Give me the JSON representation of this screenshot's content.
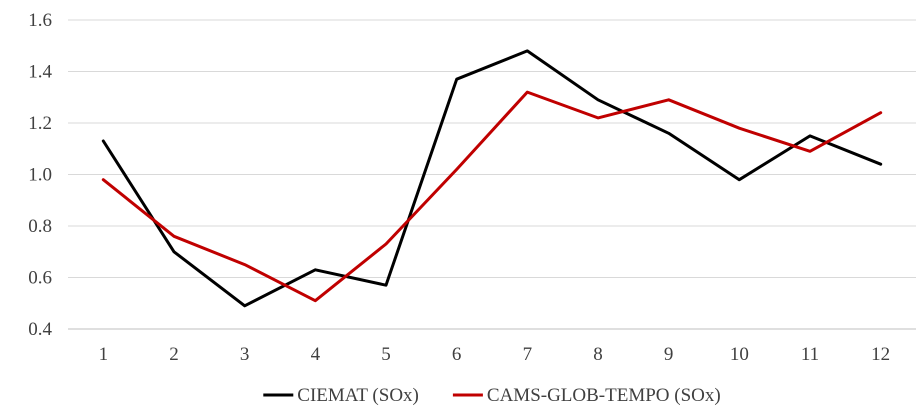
{
  "chart_data": {
    "type": "line",
    "title": "",
    "xlabel": "",
    "ylabel": "",
    "categories": [
      "1",
      "2",
      "3",
      "4",
      "5",
      "6",
      "7",
      "8",
      "9",
      "10",
      "11",
      "12"
    ],
    "ylim": [
      0.4,
      1.6
    ],
    "yticks": [
      "0.4",
      "0.6",
      "0.8",
      "1.0",
      "1.2",
      "1.4",
      "1.6"
    ],
    "grid": true,
    "legend_position": "bottom",
    "series": [
      {
        "name": "CIEMAT (SOx)",
        "color": "#000000",
        "values": [
          1.13,
          0.7,
          0.49,
          0.63,
          0.57,
          1.37,
          1.48,
          1.29,
          1.16,
          0.98,
          1.15,
          1.04
        ]
      },
      {
        "name": "CAMS-GLOB-TEMPO (SOx)",
        "color": "#c00000",
        "values": [
          0.98,
          0.76,
          0.65,
          0.51,
          0.73,
          1.02,
          1.32,
          1.22,
          1.29,
          1.18,
          1.09,
          1.24
        ]
      }
    ]
  }
}
